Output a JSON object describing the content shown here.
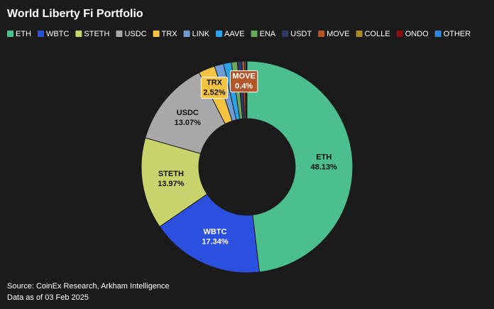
{
  "chart_data": {
    "type": "donut",
    "title": "World Liberty Fi Portfolio",
    "categories": [
      "ETH",
      "WBTC",
      "STETH",
      "USDC",
      "TRX",
      "LINK",
      "AAVE",
      "ENA",
      "USDT",
      "MOVE",
      "COLLE",
      "ONDO",
      "OTHER"
    ],
    "values": [
      48.13,
      17.34,
      13.97,
      13.07,
      2.52,
      1.4,
      1.2,
      0.9,
      0.7,
      0.4,
      0.2,
      0.1,
      0.07
    ],
    "value_labels": [
      "48.13%",
      "17.34%",
      "13.97%",
      "13.07%",
      "2.52%",
      null,
      null,
      null,
      null,
      "0.4%",
      null,
      null,
      null
    ],
    "colors": [
      "#4cbf8f",
      "#2b50e0",
      "#c9d36b",
      "#a8a8a8",
      "#f5c242",
      "#6e9dd6",
      "#2aa3e6",
      "#6aa85a",
      "#2d3a6a",
      "#b3562a",
      "#a88a2a",
      "#8b1010",
      "#2e86de"
    ],
    "source": "Source: CoinEx Research, Arkham Intelligence",
    "note": "Data as of 03 Feb 2025"
  }
}
